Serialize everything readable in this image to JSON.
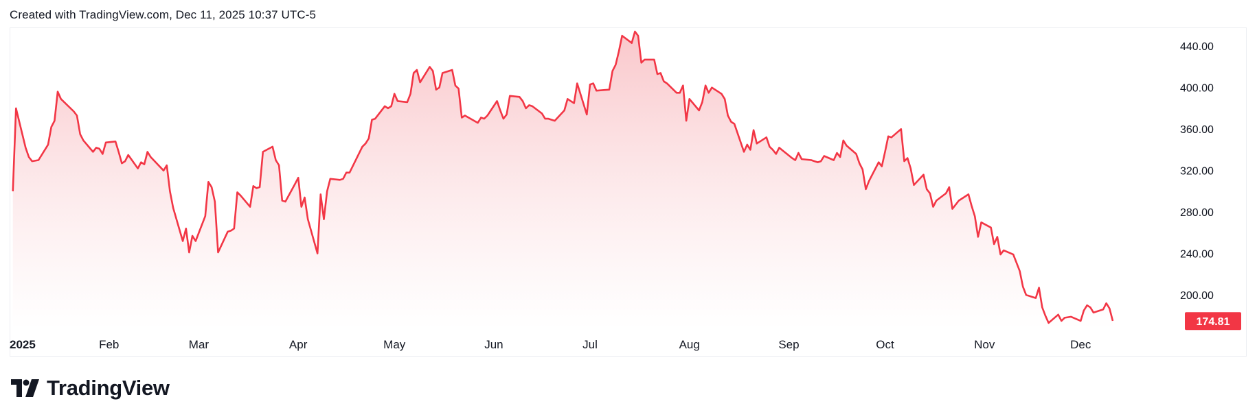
{
  "header": {
    "created_text": "Created with TradingView.com, Dec 11, 2025 10:37 UTC-5"
  },
  "brand": {
    "name": "TradingView"
  },
  "colors": {
    "line": "#f23645",
    "fill_top": "#f9c4c8",
    "fill_bottom": "#ffffff",
    "label_bg": "#f23645",
    "axis_text": "#131722"
  },
  "chart_data": {
    "type": "area",
    "title": "",
    "xlabel": "",
    "ylabel": "",
    "ylim": [
      167,
      458
    ],
    "y_ticks": [
      "440.00",
      "400.00",
      "360.00",
      "320.00",
      "280.00",
      "240.00",
      "200.00"
    ],
    "y_tick_values": [
      440,
      400,
      360,
      320,
      280,
      240,
      200
    ],
    "x_ticks": [
      "2025",
      "Feb",
      "Mar",
      "Apr",
      "May",
      "Jun",
      "Jul",
      "Aug",
      "Sep",
      "Oct",
      "Nov",
      "Dec"
    ],
    "x_tick_values": [
      "2025-01-01",
      "2025-02-01",
      "2025-03-01",
      "2025-04-01",
      "2025-05-01",
      "2025-06-01",
      "2025-07-01",
      "2025-08-01",
      "2025-09-01",
      "2025-10-01",
      "2025-11-01",
      "2025-12-01"
    ],
    "x_range": [
      "2025-01-01",
      "2026-01-01"
    ],
    "last_price_label": "174.81",
    "last_price": 174.81,
    "series": [
      {
        "x": [
          "2025-01-02",
          "2025-01-03",
          "2025-01-06",
          "2025-01-07",
          "2025-01-08",
          "2025-01-10",
          "2025-01-13",
          "2025-01-14",
          "2025-01-15",
          "2025-01-16",
          "2025-01-17",
          "2025-01-21",
          "2025-01-22",
          "2025-01-23",
          "2025-01-24",
          "2025-01-27",
          "2025-01-28",
          "2025-01-29",
          "2025-01-30",
          "2025-01-31",
          "2025-02-03",
          "2025-02-04",
          "2025-02-05",
          "2025-02-06",
          "2025-02-07",
          "2025-02-10",
          "2025-02-11",
          "2025-02-12",
          "2025-02-13",
          "2025-02-14",
          "2025-02-18",
          "2025-02-19",
          "2025-02-20",
          "2025-02-21",
          "2025-02-24",
          "2025-02-25",
          "2025-02-26",
          "2025-02-27",
          "2025-02-28",
          "2025-03-03",
          "2025-03-04",
          "2025-03-05",
          "2025-03-06",
          "2025-03-07",
          "2025-03-10",
          "2025-03-11",
          "2025-03-12",
          "2025-03-13",
          "2025-03-14",
          "2025-03-17",
          "2025-03-18",
          "2025-03-19",
          "2025-03-20",
          "2025-03-21",
          "2025-03-24",
          "2025-03-25",
          "2025-03-26",
          "2025-03-27",
          "2025-03-28",
          "2025-03-31",
          "2025-04-01",
          "2025-04-02",
          "2025-04-03",
          "2025-04-04",
          "2025-04-07",
          "2025-04-08",
          "2025-04-09",
          "2025-04-10",
          "2025-04-11",
          "2025-04-14",
          "2025-04-15",
          "2025-04-16",
          "2025-04-17",
          "2025-04-21",
          "2025-04-22",
          "2025-04-23",
          "2025-04-24",
          "2025-04-25",
          "2025-04-28",
          "2025-04-29",
          "2025-04-30",
          "2025-05-01",
          "2025-05-02",
          "2025-05-05",
          "2025-05-06",
          "2025-05-07",
          "2025-05-08",
          "2025-05-09",
          "2025-05-12",
          "2025-05-13",
          "2025-05-14",
          "2025-05-15",
          "2025-05-16",
          "2025-05-19",
          "2025-05-20",
          "2025-05-21",
          "2025-05-22",
          "2025-05-23",
          "2025-05-27",
          "2025-05-28",
          "2025-05-29",
          "2025-05-30",
          "2025-06-02",
          "2025-06-03",
          "2025-06-04",
          "2025-06-05",
          "2025-06-06",
          "2025-06-09",
          "2025-06-10",
          "2025-06-11",
          "2025-06-12",
          "2025-06-13",
          "2025-06-16",
          "2025-06-17",
          "2025-06-18",
          "2025-06-20",
          "2025-06-23",
          "2025-06-24",
          "2025-06-25",
          "2025-06-26",
          "2025-06-27",
          "2025-06-30",
          "2025-07-01",
          "2025-07-02",
          "2025-07-03",
          "2025-07-07",
          "2025-07-08",
          "2025-07-09",
          "2025-07-10",
          "2025-07-11",
          "2025-07-14",
          "2025-07-15",
          "2025-07-16",
          "2025-07-17",
          "2025-07-18",
          "2025-07-21",
          "2025-07-22",
          "2025-07-23",
          "2025-07-24",
          "2025-07-25",
          "2025-07-28",
          "2025-07-29",
          "2025-07-30",
          "2025-07-31",
          "2025-08-01",
          "2025-08-04",
          "2025-08-05",
          "2025-08-06",
          "2025-08-07",
          "2025-08-08",
          "2025-08-11",
          "2025-08-12",
          "2025-08-13",
          "2025-08-14",
          "2025-08-15",
          "2025-08-18",
          "2025-08-19",
          "2025-08-20",
          "2025-08-21",
          "2025-08-22",
          "2025-08-25",
          "2025-08-26",
          "2025-08-27",
          "2025-08-28",
          "2025-08-29",
          "2025-09-02",
          "2025-09-03",
          "2025-09-04",
          "2025-09-05",
          "2025-09-08",
          "2025-09-09",
          "2025-09-10",
          "2025-09-11",
          "2025-09-12",
          "2025-09-15",
          "2025-09-16",
          "2025-09-17",
          "2025-09-18",
          "2025-09-19",
          "2025-09-22",
          "2025-09-23",
          "2025-09-24",
          "2025-09-25",
          "2025-09-26",
          "2025-09-29",
          "2025-09-30",
          "2025-10-01",
          "2025-10-02",
          "2025-10-03",
          "2025-10-06",
          "2025-10-07",
          "2025-10-08",
          "2025-10-09",
          "2025-10-10",
          "2025-10-13",
          "2025-10-14",
          "2025-10-15",
          "2025-10-16",
          "2025-10-17",
          "2025-10-20",
          "2025-10-21",
          "2025-10-22",
          "2025-10-23",
          "2025-10-24",
          "2025-10-27",
          "2025-10-28",
          "2025-10-29",
          "2025-10-30",
          "2025-10-31",
          "2025-11-03",
          "2025-11-04",
          "2025-11-05",
          "2025-11-06",
          "2025-11-07",
          "2025-11-10",
          "2025-11-11",
          "2025-11-12",
          "2025-11-13",
          "2025-11-14",
          "2025-11-17",
          "2025-11-18",
          "2025-11-19",
          "2025-11-20",
          "2025-11-21",
          "2025-11-24",
          "2025-11-25",
          "2025-11-26",
          "2025-11-28",
          "2025-12-01",
          "2025-12-02",
          "2025-12-03",
          "2025-12-04",
          "2025-12-05",
          "2025-12-08",
          "2025-12-09",
          "2025-12-10",
          "2025-12-11"
        ],
        "values": [
          300,
          380,
          342,
          333,
          329,
          330,
          345,
          362,
          368,
          396,
          389,
          377,
          373,
          355,
          349,
          338,
          342,
          341,
          336,
          347,
          348,
          338,
          327,
          329,
          335,
          322,
          328,
          326,
          338,
          333,
          320,
          325,
          300,
          284,
          252,
          264,
          241,
          257,
          252,
          276,
          309,
          304,
          290,
          241,
          261,
          262,
          264,
          299,
          296,
          285,
          305,
          303,
          304,
          338,
          343,
          330,
          325,
          291,
          290,
          307,
          313,
          285,
          294,
          273,
          240,
          297,
          273,
          300,
          312,
          311,
          312,
          318,
          318,
          343,
          346,
          351,
          369,
          370,
          382,
          380,
          382,
          394,
          387,
          386,
          394,
          414,
          417,
          405,
          420,
          416,
          398,
          400,
          414,
          417,
          402,
          399,
          371,
          373,
          366,
          371,
          370,
          373,
          387,
          378,
          370,
          374,
          392,
          391,
          387,
          380,
          383,
          382,
          375,
          370,
          370,
          368,
          378,
          389,
          387,
          385,
          404,
          374,
          403,
          404,
          397,
          398,
          416,
          422,
          435,
          450,
          443,
          454,
          450,
          424,
          427,
          427,
          413,
          414,
          406,
          404,
          395,
          395,
          402,
          368,
          389,
          378,
          386,
          402,
          395,
          400,
          394,
          389,
          373,
          367,
          365,
          338,
          345,
          340,
          359,
          346,
          352,
          343,
          340,
          336,
          342,
          332,
          330,
          337,
          331,
          330,
          329,
          328,
          329,
          334,
          330,
          337,
          333,
          349,
          344,
          336,
          327,
          321,
          302,
          310,
          328,
          324,
          338,
          353,
          352,
          360,
          329,
          332,
          322,
          306,
          316,
          302,
          298,
          285,
          291,
          298,
          304,
          283,
          287,
          291,
          297,
          286,
          276,
          256,
          270,
          265,
          249,
          256,
          239,
          243,
          239,
          231,
          223,
          208,
          200,
          197,
          207,
          188,
          180,
          173,
          181,
          175,
          178,
          179,
          175,
          185,
          190,
          188,
          183,
          186,
          192,
          187,
          175
        ]
      }
    ]
  }
}
